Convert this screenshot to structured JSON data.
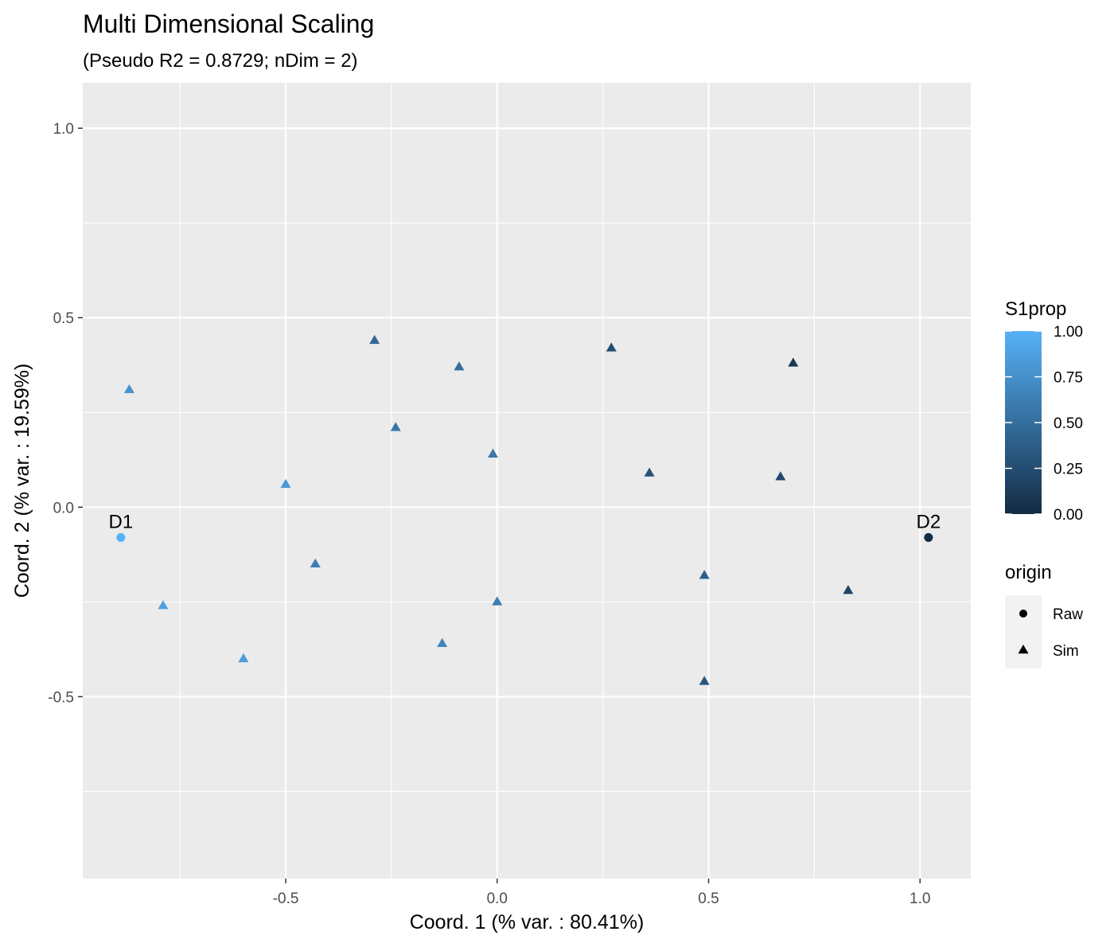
{
  "chart_data": {
    "type": "scatter",
    "title": "Multi Dimensional Scaling",
    "subtitle": "(Pseudo R2 = 0.8729; nDim = 2)",
    "xlabel": "Coord. 1 (% var. : 80.41%)",
    "ylabel": "Coord. 2 (% var. : 19.59%)",
    "xlim": [
      -0.98,
      1.12
    ],
    "ylim": [
      -0.98,
      1.12
    ],
    "x_ticks": [
      -0.5,
      0.0,
      0.5,
      1.0
    ],
    "y_ticks": [
      -0.5,
      0.0,
      0.5,
      1.0
    ],
    "x_tick_labels": [
      "-0.5",
      "0.0",
      "0.5",
      "1.0"
    ],
    "y_tick_labels": [
      "-0.5",
      "0.0",
      "0.5",
      "1.0"
    ],
    "grid": true,
    "color_scale": {
      "title": "S1prop",
      "low": "#132B43",
      "high": "#56B1F7",
      "ticks": [
        1.0,
        0.75,
        0.5,
        0.25,
        0.0
      ],
      "tick_labels": [
        "1.00",
        "0.75",
        "0.50",
        "0.25",
        "0.00"
      ]
    },
    "shape_legend": {
      "title": "origin",
      "items": [
        {
          "label": "Raw",
          "shape": "circle"
        },
        {
          "label": "Sim",
          "shape": "triangle"
        }
      ]
    },
    "legend_position": "right",
    "points": [
      {
        "x": -0.89,
        "y": -0.08,
        "s1prop": 1.0,
        "origin": "Raw",
        "label": "D1"
      },
      {
        "x": 1.02,
        "y": -0.08,
        "s1prop": 0.0,
        "origin": "Raw",
        "label": "D2"
      },
      {
        "x": -0.87,
        "y": 0.31,
        "s1prop": 0.78,
        "origin": "Sim"
      },
      {
        "x": -0.79,
        "y": -0.26,
        "s1prop": 0.88,
        "origin": "Sim"
      },
      {
        "x": -0.6,
        "y": -0.4,
        "s1prop": 0.85,
        "origin": "Sim"
      },
      {
        "x": -0.5,
        "y": 0.06,
        "s1prop": 0.82,
        "origin": "Sim"
      },
      {
        "x": -0.43,
        "y": -0.15,
        "s1prop": 0.62,
        "origin": "Sim"
      },
      {
        "x": -0.29,
        "y": 0.44,
        "s1prop": 0.45,
        "origin": "Sim"
      },
      {
        "x": -0.24,
        "y": 0.21,
        "s1prop": 0.55,
        "origin": "Sim"
      },
      {
        "x": -0.13,
        "y": -0.36,
        "s1prop": 0.68,
        "origin": "Sim"
      },
      {
        "x": -0.09,
        "y": 0.37,
        "s1prop": 0.5,
        "origin": "Sim"
      },
      {
        "x": -0.01,
        "y": 0.14,
        "s1prop": 0.58,
        "origin": "Sim"
      },
      {
        "x": 0.0,
        "y": -0.25,
        "s1prop": 0.62,
        "origin": "Sim"
      },
      {
        "x": 0.27,
        "y": 0.42,
        "s1prop": 0.25,
        "origin": "Sim"
      },
      {
        "x": 0.36,
        "y": 0.09,
        "s1prop": 0.3,
        "origin": "Sim"
      },
      {
        "x": 0.49,
        "y": -0.18,
        "s1prop": 0.4,
        "origin": "Sim"
      },
      {
        "x": 0.49,
        "y": -0.46,
        "s1prop": 0.32,
        "origin": "Sim"
      },
      {
        "x": 0.67,
        "y": 0.08,
        "s1prop": 0.22,
        "origin": "Sim"
      },
      {
        "x": 0.7,
        "y": 0.38,
        "s1prop": 0.1,
        "origin": "Sim"
      },
      {
        "x": 0.83,
        "y": -0.22,
        "s1prop": 0.18,
        "origin": "Sim"
      }
    ]
  }
}
